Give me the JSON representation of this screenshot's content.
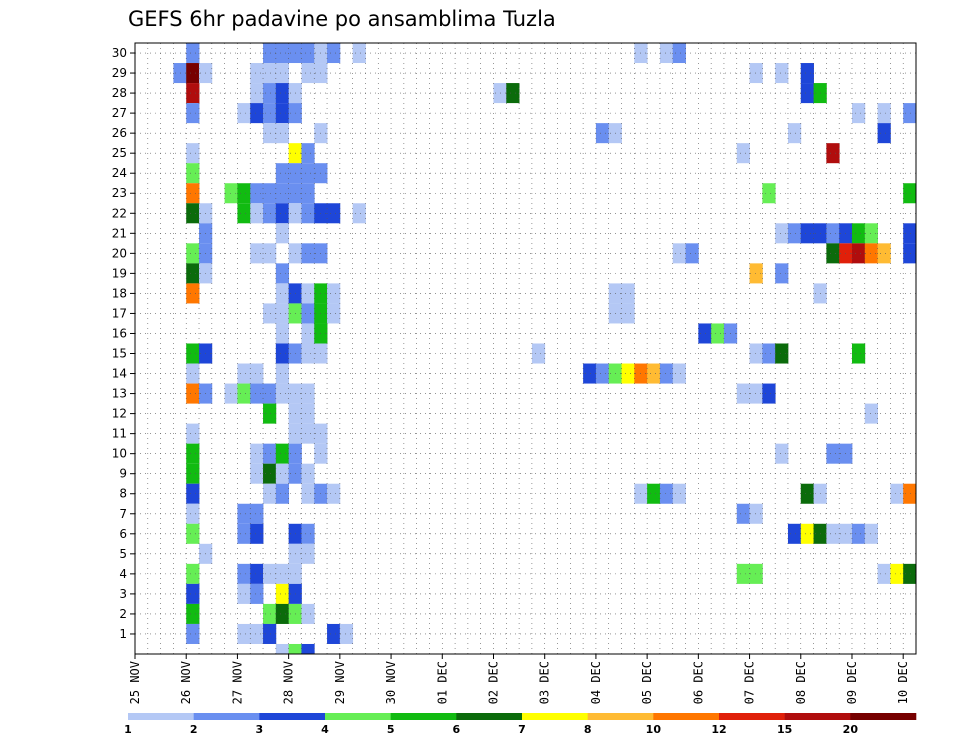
{
  "chart_data": {
    "type": "heatmap",
    "title": "GEFS 6hr padavine po ansamblima Tuzla",
    "xlabel": "",
    "ylabel": "",
    "x_axis": "time, 6-hour steps (0 = 25 NOV 00z)",
    "x_range": [
      0,
      61
    ],
    "x_ticks": [
      {
        "label": "25 NOV",
        "step": 0
      },
      {
        "label": "26 NOV",
        "step": 4
      },
      {
        "label": "27 NOV",
        "step": 8
      },
      {
        "label": "28 NOV",
        "step": 12
      },
      {
        "label": "29 NOV",
        "step": 16
      },
      {
        "label": "30 NOV",
        "step": 20
      },
      {
        "label": "01 DEC",
        "step": 24
      },
      {
        "label": "02 DEC",
        "step": 28
      },
      {
        "label": "03 DEC",
        "step": 32
      },
      {
        "label": "04 DEC",
        "step": 36
      },
      {
        "label": "05 DEC",
        "step": 40
      },
      {
        "label": "06 DEC",
        "step": 44
      },
      {
        "label": "07 DEC",
        "step": 48
      },
      {
        "label": "08 DEC",
        "step": 52
      },
      {
        "label": "09 DEC",
        "step": 56
      },
      {
        "label": "10 DEC",
        "step": 60
      }
    ],
    "y_axis": "ensemble member",
    "y_range": [
      0.5,
      30.5
    ],
    "y_ticks": [
      "1",
      "2",
      "3",
      "4",
      "5",
      "6",
      "7",
      "8",
      "9",
      "10",
      "11",
      "12",
      "13",
      "14",
      "15",
      "16",
      "17",
      "18",
      "19",
      "20",
      "21",
      "22",
      "23",
      "24",
      "25",
      "26",
      "27",
      "28",
      "29",
      "30"
    ],
    "grid": true,
    "colorbar": {
      "labels": [
        "1",
        "2",
        "3",
        "4",
        "5",
        "6",
        "7",
        "8",
        "10",
        "12",
        "15",
        "20"
      ],
      "colors": [
        "#b4c8f5",
        "#6a8ff0",
        "#1e46d8",
        "#66ee55",
        "#11bb11",
        "#0b6b0b",
        "#ffff00",
        "#ffbb33",
        "#ff7700",
        "#e0200a",
        "#b00d0d",
        "#770000"
      ]
    },
    "cell_note": "each cell: [member, time step, colour class 0-11]",
    "cells": [
      [
        30,
        4,
        1
      ],
      [
        30,
        10,
        1
      ],
      [
        30,
        11,
        1
      ],
      [
        30,
        12,
        1
      ],
      [
        30,
        13,
        1
      ],
      [
        30,
        14,
        0
      ],
      [
        30,
        15,
        1
      ],
      [
        30,
        17,
        0
      ],
      [
        30,
        39,
        0
      ],
      [
        30,
        41,
        0
      ],
      [
        30,
        42,
        1
      ],
      [
        29,
        3,
        1
      ],
      [
        29,
        4,
        11
      ],
      [
        29,
        5,
        0
      ],
      [
        29,
        9,
        0
      ],
      [
        29,
        10,
        0
      ],
      [
        29,
        11,
        0
      ],
      [
        29,
        13,
        0
      ],
      [
        29,
        14,
        0
      ],
      [
        29,
        48,
        0
      ],
      [
        29,
        50,
        0
      ],
      [
        29,
        52,
        2
      ],
      [
        28,
        4,
        10
      ],
      [
        28,
        9,
        0
      ],
      [
        28,
        10,
        1
      ],
      [
        28,
        11,
        2
      ],
      [
        28,
        12,
        0
      ],
      [
        28,
        28,
        0
      ],
      [
        28,
        29,
        5
      ],
      [
        28,
        52,
        2
      ],
      [
        28,
        53,
        4
      ],
      [
        27,
        4,
        1
      ],
      [
        27,
        8,
        0
      ],
      [
        27,
        9,
        2
      ],
      [
        27,
        10,
        1
      ],
      [
        27,
        11,
        2
      ],
      [
        27,
        12,
        1
      ],
      [
        27,
        56,
        0
      ],
      [
        27,
        58,
        0
      ],
      [
        27,
        60,
        1
      ],
      [
        26,
        10,
        0
      ],
      [
        26,
        11,
        0
      ],
      [
        26,
        14,
        0
      ],
      [
        26,
        36,
        1
      ],
      [
        26,
        37,
        0
      ],
      [
        26,
        51,
        0
      ],
      [
        26,
        58,
        2
      ],
      [
        25,
        4,
        0
      ],
      [
        25,
        12,
        6
      ],
      [
        25,
        13,
        1
      ],
      [
        25,
        47,
        0
      ],
      [
        25,
        54,
        10
      ],
      [
        24,
        4,
        3
      ],
      [
        24,
        11,
        1
      ],
      [
        24,
        12,
        1
      ],
      [
        24,
        13,
        1
      ],
      [
        24,
        14,
        1
      ],
      [
        23,
        4,
        8
      ],
      [
        23,
        7,
        3
      ],
      [
        23,
        8,
        4
      ],
      [
        23,
        9,
        1
      ],
      [
        23,
        10,
        1
      ],
      [
        23,
        11,
        1
      ],
      [
        23,
        12,
        1
      ],
      [
        23,
        13,
        1
      ],
      [
        23,
        49,
        3
      ],
      [
        23,
        60,
        4
      ],
      [
        22,
        4,
        5
      ],
      [
        22,
        5,
        0
      ],
      [
        22,
        8,
        4
      ],
      [
        22,
        9,
        0
      ],
      [
        22,
        10,
        1
      ],
      [
        22,
        11,
        2
      ],
      [
        22,
        12,
        0
      ],
      [
        22,
        13,
        1
      ],
      [
        22,
        14,
        2
      ],
      [
        22,
        15,
        2
      ],
      [
        22,
        17,
        0
      ],
      [
        21,
        5,
        1
      ],
      [
        21,
        11,
        0
      ],
      [
        21,
        50,
        0
      ],
      [
        21,
        51,
        1
      ],
      [
        21,
        52,
        2
      ],
      [
        21,
        53,
        2
      ],
      [
        21,
        54,
        1
      ],
      [
        21,
        55,
        2
      ],
      [
        21,
        56,
        4
      ],
      [
        21,
        57,
        3
      ],
      [
        21,
        60,
        2
      ],
      [
        20,
        4,
        3
      ],
      [
        20,
        5,
        1
      ],
      [
        20,
        9,
        0
      ],
      [
        20,
        10,
        0
      ],
      [
        20,
        12,
        0
      ],
      [
        20,
        13,
        1
      ],
      [
        20,
        14,
        1
      ],
      [
        20,
        42,
        0
      ],
      [
        20,
        43,
        1
      ],
      [
        20,
        54,
        5
      ],
      [
        20,
        55,
        9
      ],
      [
        20,
        56,
        10
      ],
      [
        20,
        57,
        8
      ],
      [
        20,
        58,
        7
      ],
      [
        20,
        60,
        2
      ],
      [
        19,
        4,
        5
      ],
      [
        19,
        5,
        0
      ],
      [
        19,
        11,
        1
      ],
      [
        19,
        48,
        7
      ],
      [
        19,
        50,
        1
      ],
      [
        18,
        4,
        8
      ],
      [
        18,
        11,
        0
      ],
      [
        18,
        12,
        2
      ],
      [
        18,
        13,
        0
      ],
      [
        18,
        14,
        4
      ],
      [
        18,
        15,
        0
      ],
      [
        18,
        37,
        0
      ],
      [
        18,
        38,
        0
      ],
      [
        18,
        53,
        0
      ],
      [
        17,
        10,
        0
      ],
      [
        17,
        11,
        0
      ],
      [
        17,
        12,
        3
      ],
      [
        17,
        13,
        1
      ],
      [
        17,
        14,
        4
      ],
      [
        17,
        15,
        0
      ],
      [
        17,
        37,
        0
      ],
      [
        17,
        38,
        0
      ],
      [
        16,
        11,
        0
      ],
      [
        16,
        13,
        0
      ],
      [
        16,
        14,
        4
      ],
      [
        16,
        44,
        2
      ],
      [
        16,
        45,
        3
      ],
      [
        16,
        46,
        1
      ],
      [
        15,
        4,
        4
      ],
      [
        15,
        5,
        2
      ],
      [
        15,
        11,
        2
      ],
      [
        15,
        12,
        1
      ],
      [
        15,
        13,
        0
      ],
      [
        15,
        14,
        0
      ],
      [
        15,
        31,
        0
      ],
      [
        15,
        48,
        0
      ],
      [
        15,
        49,
        1
      ],
      [
        15,
        50,
        5
      ],
      [
        15,
        56,
        4
      ],
      [
        14,
        4,
        0
      ],
      [
        14,
        8,
        0
      ],
      [
        14,
        9,
        0
      ],
      [
        14,
        11,
        0
      ],
      [
        14,
        35,
        2
      ],
      [
        14,
        36,
        1
      ],
      [
        14,
        37,
        3
      ],
      [
        14,
        38,
        6
      ],
      [
        14,
        39,
        8
      ],
      [
        14,
        40,
        7
      ],
      [
        14,
        41,
        1
      ],
      [
        14,
        42,
        0
      ],
      [
        13,
        4,
        8
      ],
      [
        13,
        5,
        1
      ],
      [
        13,
        7,
        0
      ],
      [
        13,
        8,
        3
      ],
      [
        13,
        9,
        1
      ],
      [
        13,
        10,
        1
      ],
      [
        13,
        11,
        0
      ],
      [
        13,
        12,
        0
      ],
      [
        13,
        13,
        0
      ],
      [
        13,
        47,
        0
      ],
      [
        13,
        48,
        0
      ],
      [
        13,
        49,
        2
      ],
      [
        12,
        10,
        4
      ],
      [
        12,
        12,
        0
      ],
      [
        12,
        13,
        0
      ],
      [
        12,
        57,
        0
      ],
      [
        11,
        4,
        0
      ],
      [
        11,
        12,
        0
      ],
      [
        11,
        13,
        0
      ],
      [
        11,
        14,
        0
      ],
      [
        10,
        4,
        4
      ],
      [
        10,
        9,
        0
      ],
      [
        10,
        10,
        1
      ],
      [
        10,
        11,
        4
      ],
      [
        10,
        12,
        1
      ],
      [
        10,
        14,
        0
      ],
      [
        10,
        50,
        0
      ],
      [
        10,
        54,
        1
      ],
      [
        10,
        55,
        1
      ],
      [
        9,
        4,
        4
      ],
      [
        9,
        9,
        0
      ],
      [
        9,
        10,
        5
      ],
      [
        9,
        11,
        0
      ],
      [
        9,
        12,
        1
      ],
      [
        9,
        13,
        0
      ],
      [
        8,
        4,
        2
      ],
      [
        8,
        10,
        0
      ],
      [
        8,
        11,
        1
      ],
      [
        8,
        13,
        0
      ],
      [
        8,
        14,
        1
      ],
      [
        8,
        15,
        0
      ],
      [
        8,
        39,
        0
      ],
      [
        8,
        40,
        4
      ],
      [
        8,
        41,
        1
      ],
      [
        8,
        42,
        0
      ],
      [
        8,
        52,
        5
      ],
      [
        8,
        53,
        0
      ],
      [
        8,
        59,
        0
      ],
      [
        8,
        60,
        8
      ],
      [
        7,
        4,
        0
      ],
      [
        7,
        8,
        1
      ],
      [
        7,
        9,
        1
      ],
      [
        7,
        47,
        1
      ],
      [
        7,
        48,
        0
      ],
      [
        6,
        4,
        3
      ],
      [
        6,
        8,
        1
      ],
      [
        6,
        9,
        2
      ],
      [
        6,
        12,
        2
      ],
      [
        6,
        13,
        1
      ],
      [
        6,
        51,
        2
      ],
      [
        6,
        52,
        6
      ],
      [
        6,
        53,
        5
      ],
      [
        6,
        54,
        0
      ],
      [
        6,
        55,
        0
      ],
      [
        6,
        56,
        1
      ],
      [
        6,
        57,
        0
      ],
      [
        5,
        5,
        0
      ],
      [
        5,
        12,
        0
      ],
      [
        5,
        13,
        0
      ],
      [
        4,
        4,
        3
      ],
      [
        4,
        8,
        1
      ],
      [
        4,
        9,
        2
      ],
      [
        4,
        10,
        0
      ],
      [
        4,
        11,
        0
      ],
      [
        4,
        12,
        0
      ],
      [
        4,
        47,
        3
      ],
      [
        4,
        48,
        3
      ],
      [
        4,
        58,
        0
      ],
      [
        4,
        59,
        6
      ],
      [
        4,
        60,
        5
      ],
      [
        3,
        4,
        2
      ],
      [
        3,
        8,
        0
      ],
      [
        3,
        9,
        1
      ],
      [
        3,
        11,
        6
      ],
      [
        3,
        12,
        2
      ],
      [
        2,
        4,
        4
      ],
      [
        2,
        10,
        3
      ],
      [
        2,
        11,
        5
      ],
      [
        2,
        12,
        3
      ],
      [
        2,
        13,
        0
      ],
      [
        1,
        4,
        1
      ],
      [
        1,
        8,
        0
      ],
      [
        1,
        9,
        0
      ],
      [
        1,
        10,
        2
      ],
      [
        1,
        15,
        2
      ],
      [
        1,
        16,
        0
      ],
      [
        0,
        11,
        0
      ],
      [
        0,
        12,
        3
      ],
      [
        0,
        13,
        2
      ]
    ]
  }
}
